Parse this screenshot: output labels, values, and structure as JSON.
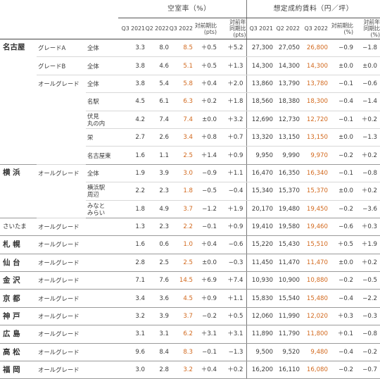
{
  "header": {
    "vacancy_group": "空室率（%）",
    "rent_group": "想定成約賃料（円／坪）",
    "cols": [
      "Q3 2021",
      "Q2 2022",
      "Q3 2022",
      "対前期比\n(pts)",
      "対前年\n同期比\n(pts)",
      "Q3 2021",
      "Q2 2022",
      "Q3 2022",
      "対前期比\n(%)",
      "対前年\n同期比\n(%)"
    ]
  },
  "rows": [
    {
      "city": "名古屋",
      "grade": "グレードA",
      "area": "全体",
      "v": [
        "3.3",
        "8.0",
        "8.5",
        "＋0.5",
        "＋5.2",
        "27,300",
        "27,050",
        "26,800",
        "−0.9",
        "−1.8"
      ]
    },
    {
      "grade": "グレードB",
      "area": "全体",
      "v": [
        "3.8",
        "4.6",
        "5.1",
        "＋0.5",
        "＋1.3",
        "14,300",
        "14,300",
        "14,300",
        "±0.0",
        "±0.0"
      ]
    },
    {
      "grade": "オールグレード",
      "area": "全体",
      "v": [
        "3.8",
        "5.4",
        "5.8",
        "＋0.4",
        "＋2.0",
        "13,860",
        "13,790",
        "13,780",
        "−0.1",
        "−0.6"
      ]
    },
    {
      "area": "名駅",
      "v": [
        "4.5",
        "6.1",
        "6.3",
        "＋0.2",
        "＋1.8",
        "18,560",
        "18,380",
        "18,300",
        "−0.4",
        "−1.4"
      ]
    },
    {
      "area": "伏見\n丸の内",
      "v": [
        "4.2",
        "7.4",
        "7.4",
        "±0.0",
        "＋3.2",
        "12,690",
        "12,730",
        "12,720",
        "−0.1",
        "＋0.2"
      ]
    },
    {
      "area": "栄",
      "v": [
        "2.7",
        "2.6",
        "3.4",
        "＋0.8",
        "＋0.7",
        "13,320",
        "13,150",
        "13,150",
        "±0.0",
        "−1.3"
      ]
    },
    {
      "area": "名古屋東",
      "v": [
        "1.6",
        "1.1",
        "2.5",
        "＋1.4",
        "＋0.9",
        "9,950",
        "9,990",
        "9,970",
        "−0.2",
        "＋0.2"
      ]
    },
    {
      "city": "横 浜",
      "grade": "オールグレード",
      "area": "全体",
      "v": [
        "1.9",
        "3.9",
        "3.0",
        "−0.9",
        "＋1.1",
        "16,470",
        "16,350",
        "16,340",
        "−0.1",
        "−0.8"
      ]
    },
    {
      "area": "横浜駅\n周辺",
      "v": [
        "2.2",
        "2.3",
        "1.8",
        "−0.5",
        "−0.4",
        "15,340",
        "15,370",
        "15,370",
        "±0.0",
        "＋0.2"
      ]
    },
    {
      "area": "みなと\nみらい",
      "v": [
        "1.8",
        "4.9",
        "3.7",
        "−1.2",
        "＋1.9",
        "20,170",
        "19,480",
        "19,450",
        "−0.2",
        "−3.6"
      ]
    },
    {
      "city": "さいたま",
      "grade": "オールグレード",
      "v": [
        "1.3",
        "2.3",
        "2.2",
        "−0.1",
        "＋0.9",
        "19,410",
        "19,580",
        "19,460",
        "−0.6",
        "＋0.3"
      ]
    },
    {
      "city": "札 幌",
      "grade": "オールグレード",
      "v": [
        "1.6",
        "0.6",
        "1.0",
        "＋0.4",
        "−0.6",
        "15,220",
        "15,430",
        "15,510",
        "＋0.5",
        "＋1.9"
      ]
    },
    {
      "city": "仙 台",
      "grade": "オールグレード",
      "v": [
        "2.8",
        "2.5",
        "2.5",
        "±0.0",
        "−0.3",
        "11,450",
        "11,470",
        "11,470",
        "±0.0",
        "＋0.2"
      ]
    },
    {
      "city": "金 沢",
      "grade": "オールグレード",
      "v": [
        "7.1",
        "7.6",
        "14.5",
        "＋6.9",
        "＋7.4",
        "10,930",
        "10,900",
        "10,880",
        "−0.2",
        "−0.5"
      ]
    },
    {
      "city": "京 都",
      "grade": "オールグレード",
      "v": [
        "3.4",
        "3.6",
        "4.5",
        "＋0.9",
        "＋1.1",
        "15,830",
        "15,540",
        "15,480",
        "−0.4",
        "−2.2"
      ]
    },
    {
      "city": "神 戸",
      "grade": "オールグレード",
      "v": [
        "3.2",
        "3.9",
        "3.7",
        "−0.2",
        "＋0.5",
        "12,060",
        "11,990",
        "12,020",
        "＋0.3",
        "−0.3"
      ]
    },
    {
      "city": "広 島",
      "grade": "オールグレード",
      "v": [
        "3.1",
        "3.1",
        "6.2",
        "＋3.1",
        "＋3.1",
        "11,890",
        "11,790",
        "11,800",
        "＋0.1",
        "−0.8"
      ]
    },
    {
      "city": "高 松",
      "grade": "オールグレード",
      "v": [
        "9.6",
        "8.4",
        "8.3",
        "−0.1",
        "−1.3",
        "9,500",
        "9,520",
        "9,480",
        "−0.4",
        "−0.2"
      ]
    },
    {
      "city": "福 岡",
      "grade": "オールグレード",
      "v": [
        "3.0",
        "2.8",
        "3.2",
        "＋0.4",
        "＋0.2",
        "16,200",
        "16,110",
        "16,080",
        "−0.2",
        "−0.7"
      ]
    }
  ],
  "colors": {
    "highlight": "#d2691e",
    "rule": "#555555"
  }
}
